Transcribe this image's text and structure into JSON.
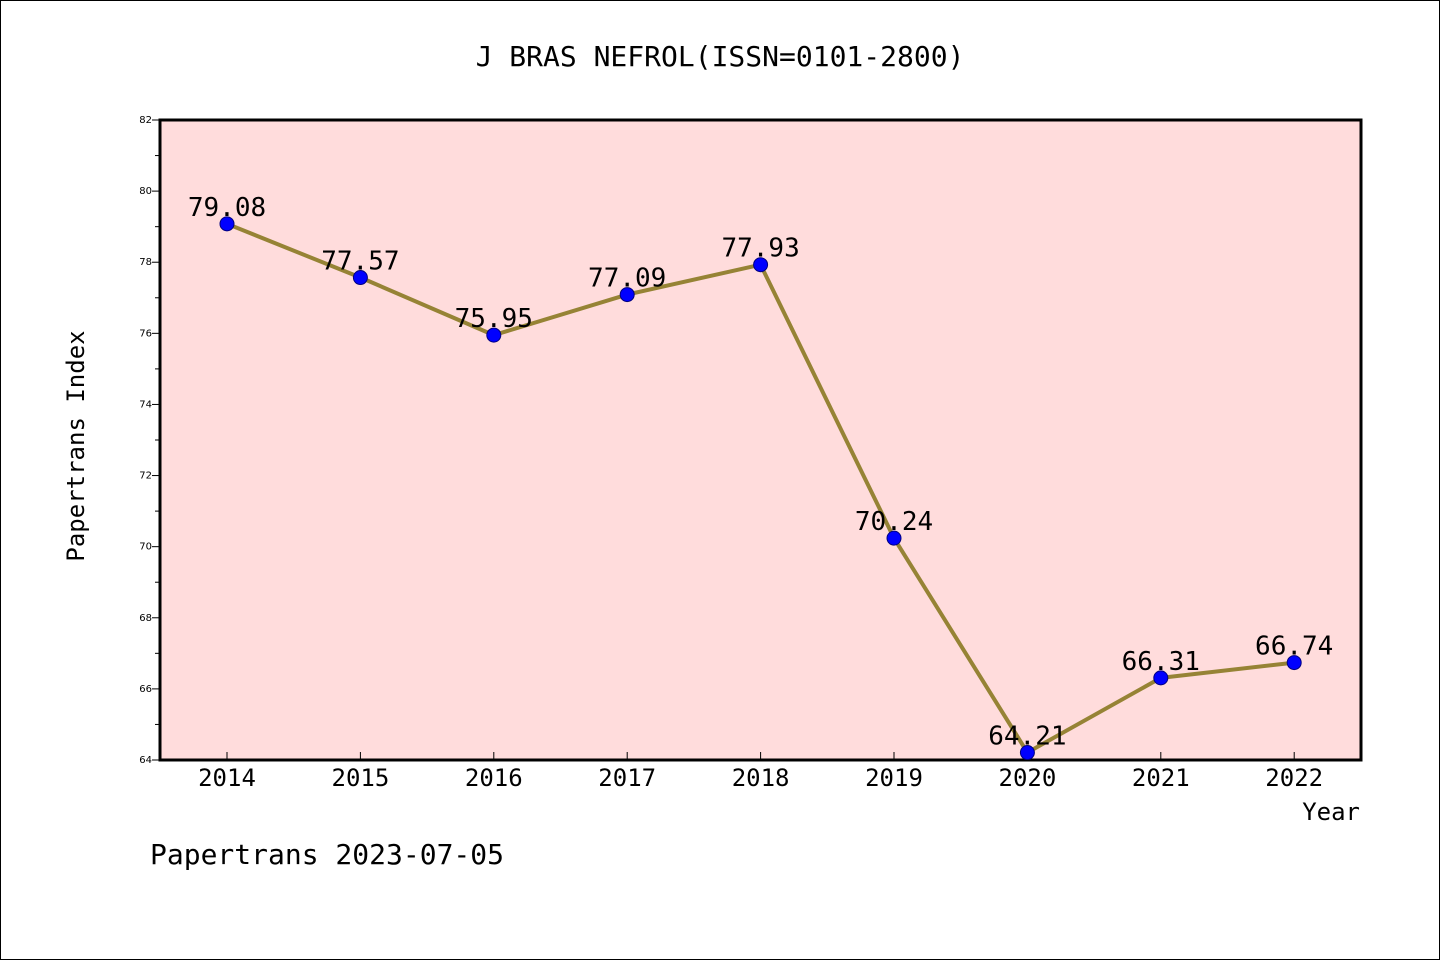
{
  "chart_data": {
    "type": "line",
    "title": "J BRAS NEFROL(ISSN=0101-2800)",
    "xlabel": "Year",
    "ylabel": "Papertrans Index",
    "categories": [
      "2014",
      "2015",
      "2016",
      "2017",
      "2018",
      "2019",
      "2020",
      "2021",
      "2022"
    ],
    "series": [
      {
        "values": [
          79.08,
          77.57,
          75.95,
          77.09,
          77.93,
          70.24,
          64.21,
          66.31,
          66.74
        ],
        "labels": [
          "79.08",
          "77.57",
          "75.95",
          "77.09",
          "77.93",
          "70.24",
          "64.21",
          "66.31",
          "66.74"
        ]
      }
    ],
    "ylim": [
      64,
      82
    ],
    "yticks": [
      "64",
      "66",
      "68",
      "70",
      "72",
      "74",
      "76",
      "78",
      "80",
      "82"
    ],
    "grid": false,
    "legend": "none",
    "colors": {
      "plot_background": "#ffdcdc",
      "line": "#968335",
      "marker": "#0000ff",
      "marker_edge": "#000080"
    }
  },
  "footer": {
    "text": "Papertrans 2023-07-05"
  }
}
